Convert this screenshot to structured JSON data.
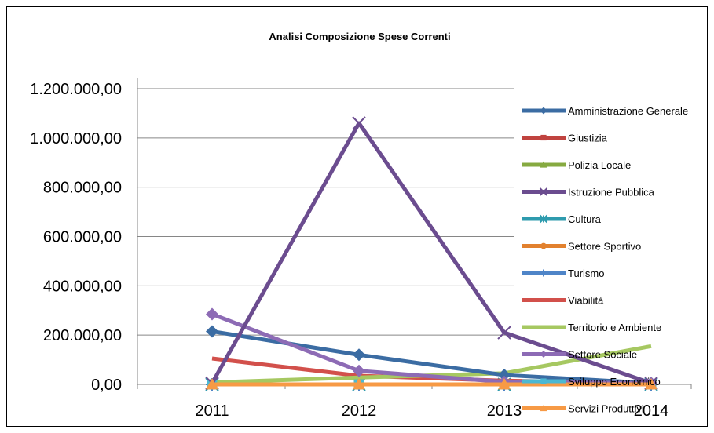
{
  "chart_data": {
    "type": "line",
    "title": "Analisi Composizione Spese Correnti",
    "categories": [
      "2011",
      "2012",
      "2013",
      "2014"
    ],
    "ylim": [
      0,
      1200000
    ],
    "ytick_values": [
      0,
      200000,
      400000,
      600000,
      800000,
      1000000,
      1200000
    ],
    "ytick_labels": [
      "0,00",
      "200.000,00",
      "400.000,00",
      "600.000,00",
      "800.000,00",
      "1.000.000,00",
      "1.200.000,00"
    ],
    "grid": true,
    "legend_position": "right",
    "series": [
      {
        "name": "Amministrazione Generale",
        "color": "#3b6ca3",
        "marker": "diamond",
        "values": [
          215000,
          120000,
          38000,
          5000
        ]
      },
      {
        "name": "Giustizia",
        "color": "#c0433f",
        "marker": "square",
        "values": [
          0,
          0,
          0,
          0
        ]
      },
      {
        "name": "Polizia Locale",
        "color": "#86aa41",
        "marker": "triangle",
        "values": [
          0,
          0,
          0,
          0
        ]
      },
      {
        "name": "Istruzione Pubblica",
        "color": "#6b4c8f",
        "marker": "x",
        "values": [
          5000,
          1060000,
          210000,
          5000
        ]
      },
      {
        "name": "Cultura",
        "color": "#2e9bae",
        "marker": "star",
        "values": [
          0,
          0,
          0,
          0
        ]
      },
      {
        "name": "Settore Sportivo",
        "color": "#e2812e",
        "marker": "circle",
        "values": [
          0,
          0,
          0,
          0
        ]
      },
      {
        "name": "Turismo",
        "color": "#4f85c8",
        "marker": "plus",
        "values": [
          0,
          0,
          0,
          0
        ]
      },
      {
        "name": "Viabilità",
        "color": "#d2504b",
        "marker": "none",
        "values": [
          105000,
          35000,
          15000,
          5000
        ]
      },
      {
        "name": "Territorio e Ambiente",
        "color": "#a6c861",
        "marker": "none",
        "values": [
          8000,
          28000,
          45000,
          155000
        ]
      },
      {
        "name": "Settore Sociale",
        "color": "#8d6bb5",
        "marker": "diamond",
        "values": [
          285000,
          55000,
          10000,
          5000
        ]
      },
      {
        "name": "Sviluppo Economico",
        "color": "#4cb8d2",
        "marker": "square",
        "values": [
          0,
          0,
          0,
          0
        ]
      },
      {
        "name": "Servizi Produttivi",
        "color": "#f79a45",
        "marker": "triangle",
        "values": [
          0,
          0,
          0,
          0
        ]
      }
    ]
  }
}
